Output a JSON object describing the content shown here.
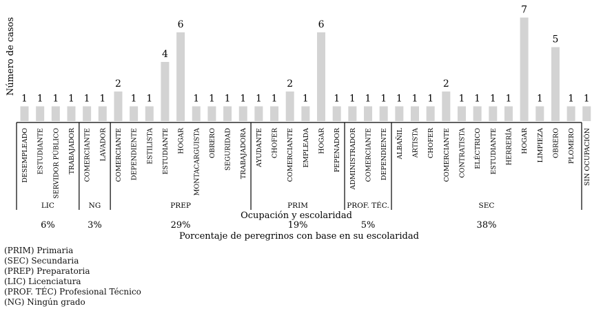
{
  "chart_data": {
    "type": "bar",
    "ylabel": "Número de casos",
    "xlabel": "Ocupación y escolaridad",
    "percent_title": "Porcentaje de peregrinos con base en su escolaridad",
    "ylim": [
      0,
      7
    ],
    "bar_color": "#d3d3d3",
    "groups": [
      {
        "name": "LIC",
        "percent": "6%",
        "categories": [
          "DESEMPLEADO",
          "ESTUDIANTE",
          "SERVIDOR PÚBLICO",
          "TRABAJADOR"
        ],
        "values": [
          1,
          1,
          1,
          1
        ]
      },
      {
        "name": "NG",
        "percent": "3%",
        "categories": [
          "COMERCIANTE",
          "LAVADOR"
        ],
        "values": [
          1,
          1
        ]
      },
      {
        "name": "PREP",
        "percent": "29%",
        "categories": [
          "COMERCIANTE",
          "DEPENDIENTE",
          "ESTILISTA",
          "ESTUDIANTE",
          "HOGAR",
          "MONTACARGUISTA",
          "OBRERO",
          "SEGURIDAD",
          "TRABAJADORA"
        ],
        "values": [
          2,
          1,
          1,
          4,
          6,
          1,
          1,
          1,
          1
        ]
      },
      {
        "name": "PRIM",
        "percent": "19%",
        "categories": [
          "AYUDANTE",
          "CHOFER",
          "COMERCIANTE",
          "EMPLEADA",
          "HOGAR",
          "PEPENADOR"
        ],
        "values": [
          1,
          1,
          2,
          1,
          6,
          1
        ]
      },
      {
        "name": "PROF. TÉC.",
        "percent": "5%",
        "categories": [
          "ADMINISTRADOR",
          "COMERCIANTE",
          "DEPENDIENTE"
        ],
        "values": [
          1,
          1,
          1
        ]
      },
      {
        "name": "SEC",
        "percent": "38%",
        "categories": [
          "ALBAÑIL",
          "ARTISTA",
          "CHOFER",
          "COMERCIANTE",
          "CONTRATISTA",
          "ELÉCTRICO",
          "ESTUDIANTE",
          "HERRERÍA",
          "HOGAR",
          "LIMPIEZA",
          "OBRERO",
          "PLOMERO",
          "SIN OCUPACIÓN"
        ],
        "values": [
          1,
          1,
          1,
          2,
          1,
          1,
          1,
          1,
          7,
          1,
          5,
          1,
          1
        ]
      }
    ]
  },
  "legend": [
    "(PRIM) Primaria",
    "(SEC) Secundaria",
    "(PREP) Preparatoria",
    "(LIC) Licenciatura",
    "(PROF. TÉC) Profesional Técnico",
    "(NG) Ningún grado"
  ]
}
